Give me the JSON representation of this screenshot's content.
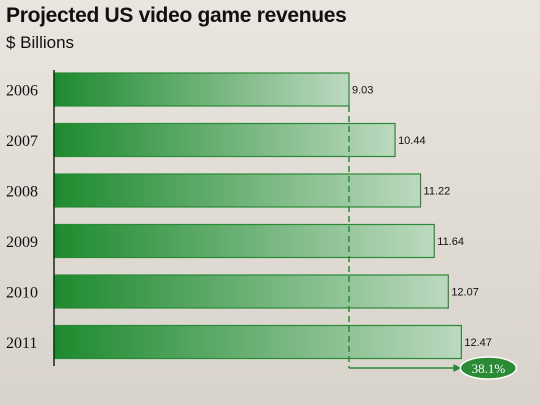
{
  "chart_data": {
    "type": "bar",
    "orientation": "horizontal",
    "title": "Projected US video game revenues",
    "subtitle": "$ Billions",
    "categories": [
      "2006",
      "2007",
      "2008",
      "2009",
      "2010",
      "2011"
    ],
    "values": [
      9.03,
      10.44,
      11.22,
      11.64,
      12.07,
      12.47
    ],
    "value_labels": [
      "9.03",
      "10.44",
      "11.22",
      "11.64",
      "12.07",
      "12.47"
    ],
    "xlim": [
      0,
      14.5
    ],
    "grid": false,
    "legend": "none",
    "annotation": {
      "label": "38.1%",
      "from_category": "2006",
      "to_category": "2011"
    },
    "colors": {
      "bar_dark": "#1d8a2e",
      "bar_light": "#bcd9bf",
      "bar_stroke": "#2a8a36",
      "badge": "#2a8a36",
      "axis": "#222222"
    }
  }
}
